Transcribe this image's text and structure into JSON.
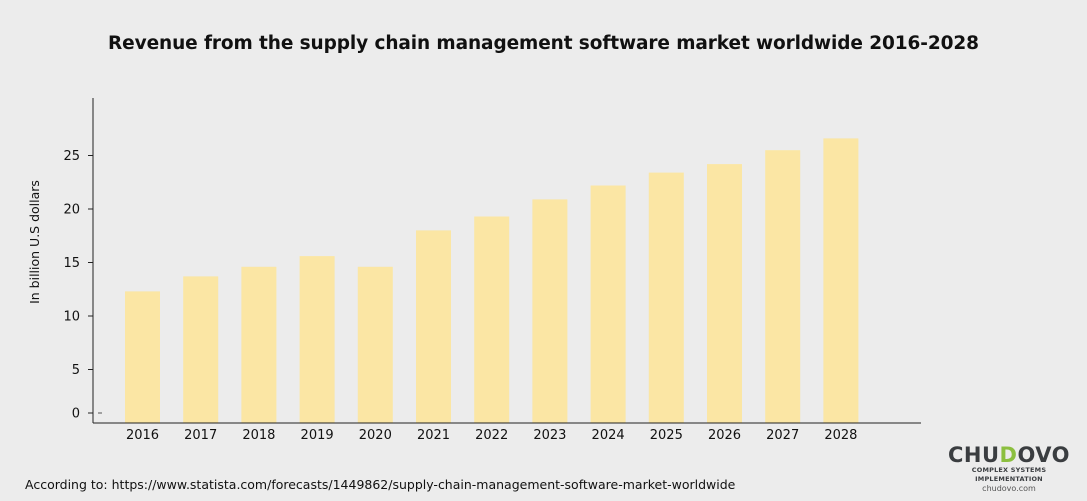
{
  "chart_data": {
    "type": "bar",
    "title": "Revenue from the supply chain management software market worldwide 2016-2028",
    "xlabel": "",
    "ylabel": "In billion U.S dollars",
    "categories": [
      "2016",
      "2017",
      "2018",
      "2019",
      "2020",
      "2021",
      "2022",
      "2023",
      "2024",
      "2025",
      "2026",
      "2027",
      "2028"
    ],
    "values": [
      12.3,
      13.7,
      14.6,
      15.6,
      14.6,
      18.0,
      19.3,
      20.9,
      22.2,
      23.4,
      24.2,
      25.5,
      26.6
    ],
    "yticks": [
      "0",
      "5",
      "10",
      "15",
      "20",
      "25"
    ],
    "ylim": [
      0,
      30
    ],
    "grid": false,
    "bar_color": "#fbe6a4",
    "axis_color": "#222222"
  },
  "footer": {
    "source": "According to: https://www.statista.com/forecasts/1449862/supply-chain-management-software-market-worldwide"
  },
  "brand": {
    "name_part1": "CHU",
    "name_accent": "D",
    "name_part2": "OVO",
    "tagline": "COMPLEX SYSTEMS IMPLEMENTATION",
    "url": "chudovo.com",
    "accent_color": "#8cbf3f"
  }
}
